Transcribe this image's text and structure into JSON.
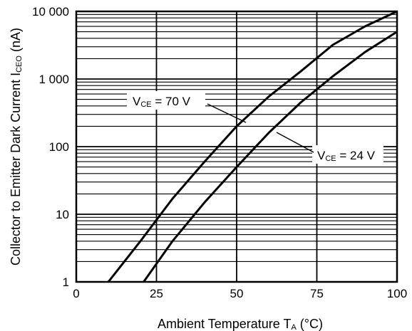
{
  "chart_data": {
    "type": "line",
    "title": "",
    "xlabel": {
      "prefix": "Ambient Temperature  T",
      "sub": "A",
      "suffix": " (°C)"
    },
    "ylabel": {
      "prefix": "Collector to Emitter Dark Current  I",
      "sub": "CEO",
      "suffix": " (nA)"
    },
    "x_ticks": [
      0,
      25,
      50,
      75,
      100
    ],
    "x_tick_labels": [
      "0",
      "25",
      "50",
      "75",
      "100"
    ],
    "xlim": [
      0,
      100
    ],
    "y_scale": "log",
    "ylim": [
      1,
      10000
    ],
    "y_ticks": [
      1,
      10,
      100,
      1000,
      10000
    ],
    "y_tick_labels": [
      "1",
      "10",
      "100",
      "1 000",
      "10 000"
    ],
    "grid": true,
    "series": [
      {
        "name": {
          "prefix": "V",
          "sub": "CE",
          "suffix": " = 70 V"
        },
        "x": [
          10,
          20,
          30,
          40,
          50,
          60,
          70,
          80,
          90,
          100
        ],
        "y": [
          1,
          4,
          17,
          60,
          200,
          550,
          1300,
          3200,
          6000,
          10000
        ]
      },
      {
        "name": {
          "prefix": "V",
          "sub": "CE",
          "suffix": " = 24 V"
        },
        "x": [
          21,
          30,
          40,
          50,
          60,
          70,
          80,
          90,
          100
        ],
        "y": [
          1,
          4,
          15,
          50,
          160,
          450,
          1100,
          2500,
          5000
        ]
      }
    ]
  }
}
